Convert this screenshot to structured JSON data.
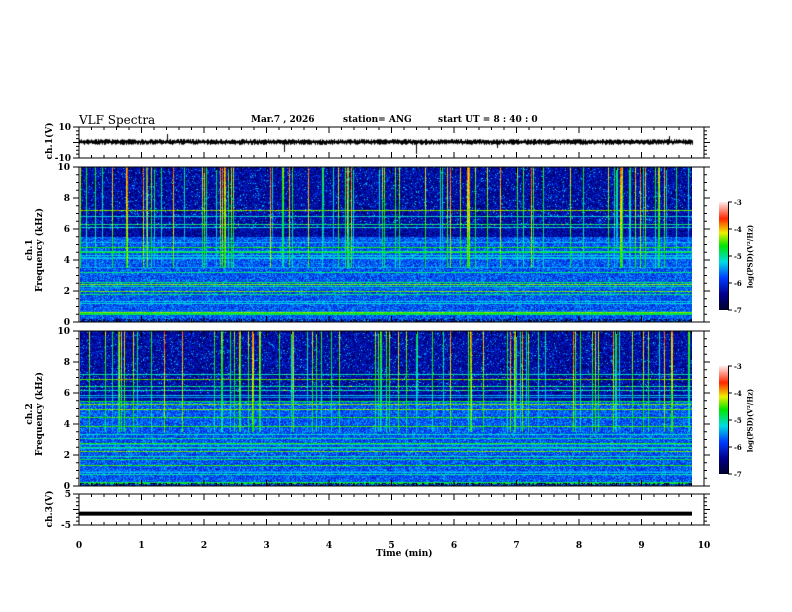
{
  "header": {
    "title": "VLF Spectra",
    "date": "Mar.7 , 2026",
    "station": "station= ANG",
    "start": "start  UT =   8 : 40 : 0"
  },
  "chart_data": [
    {
      "type": "line",
      "name": "ch1",
      "ylabel": "ch.1(V)",
      "ylim": [
        -10,
        10
      ],
      "yticks": [
        "10",
        "-10"
      ],
      "xlim": [
        0,
        10
      ],
      "baseline": 1.5,
      "description_values": {
        "spikes_min": [
          1.4,
          3.3,
          5.4
        ]
      }
    },
    {
      "type": "heatmap",
      "name": "ch1-spectrogram",
      "ylabel": "ch.1\nFrequency (kHz)",
      "ylim": [
        0,
        10
      ],
      "yticks": [
        "0",
        "2",
        "4",
        "6",
        "8",
        "10"
      ],
      "xlim": [
        0,
        9.8
      ],
      "colorbar": {
        "label": "log(PSD)(V²/Hz)",
        "range": [
          -7,
          -3
        ],
        "ticks": [
          "-3",
          "-4",
          "-5",
          "-6",
          "-7"
        ]
      }
    },
    {
      "type": "heatmap",
      "name": "ch2-spectrogram",
      "ylabel": "ch.2\nFrequency (kHz)",
      "ylim": [
        0,
        10
      ],
      "yticks": [
        "0",
        "2",
        "4",
        "6",
        "8",
        "10"
      ],
      "xlim": [
        0,
        9.8
      ],
      "colorbar": {
        "label": "log(PSD)(V²/Hz)",
        "range": [
          -7,
          -3
        ],
        "ticks": [
          "-3",
          "-4",
          "-5",
          "-6",
          "-7"
        ]
      }
    },
    {
      "type": "line",
      "name": "ch3",
      "ylabel": "ch.3(V)",
      "ylim": [
        -5,
        5
      ],
      "yticks": [
        "5",
        "-5"
      ],
      "xlim": [
        0,
        10
      ],
      "values_constant": -1
    }
  ],
  "xaxis": {
    "label": "Time  (min)",
    "ticks": [
      "0",
      "1",
      "2",
      "3",
      "4",
      "5",
      "6",
      "7",
      "8",
      "9",
      "10"
    ]
  },
  "labels": {
    "ch1": "ch.1(V)",
    "ch2a": "ch.2",
    "ch1a": "ch.1",
    "freq": "Frequency (kHz)",
    "ch3": "ch.3(V)",
    "cb": "log(PSD)(V²/Hz)"
  }
}
